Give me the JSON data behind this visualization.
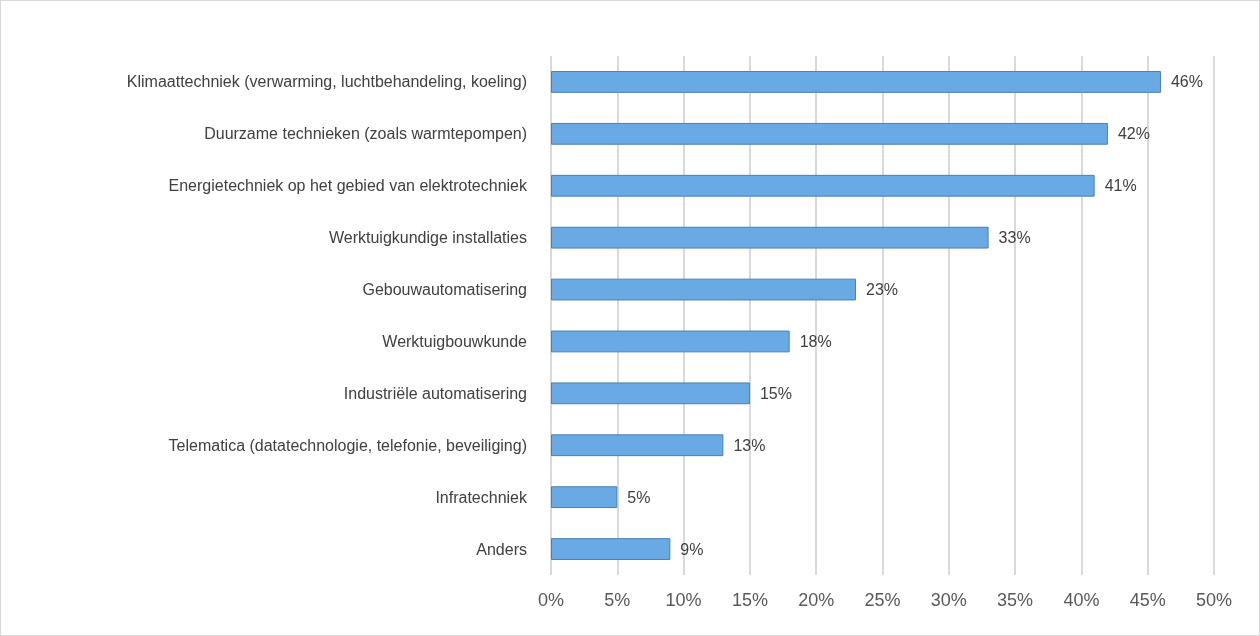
{
  "chart_data": {
    "type": "bar",
    "orientation": "horizontal",
    "categories": [
      "Klimaattechniek (verwarming, luchtbehandeling, koeling)",
      "Duurzame technieken (zoals warmtepompen)",
      "Energietechniek op het gebied van elektrotechniek",
      "Werktuigkundige installaties",
      "Gebouwautomatisering",
      "Werktuigbouwkunde",
      "Industriële automatisering",
      "Telematica (datatechnologie, telefonie, beveiliging)",
      "Infratechniek",
      "Anders"
    ],
    "values": [
      46,
      42,
      41,
      33,
      23,
      18,
      15,
      13,
      5,
      9
    ],
    "value_labels": [
      "46%",
      "42%",
      "41%",
      "33%",
      "23%",
      "18%",
      "15%",
      "13%",
      "5%",
      "9%"
    ],
    "color": "#6aaae4",
    "xlim": [
      0,
      50
    ],
    "xticks": [
      {
        "value": 0,
        "label": "0%"
      },
      {
        "value": 5,
        "label": "5%"
      },
      {
        "value": 10,
        "label": "10%"
      },
      {
        "value": 15,
        "label": "15%"
      },
      {
        "value": 20,
        "label": "20%"
      },
      {
        "value": 25,
        "label": "25%"
      },
      {
        "value": 30,
        "label": "30%"
      },
      {
        "value": 35,
        "label": "35%"
      },
      {
        "value": 40,
        "label": "40%"
      },
      {
        "value": 45,
        "label": "45%"
      },
      {
        "value": 50,
        "label": "50%"
      }
    ],
    "grid": "x"
  }
}
